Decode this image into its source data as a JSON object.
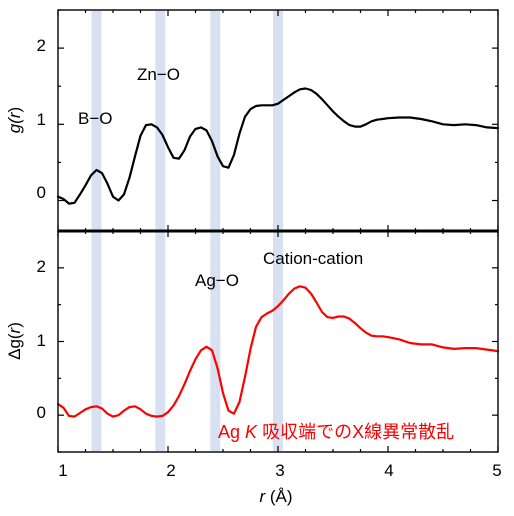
{
  "chart_data": [
    {
      "type": "line",
      "panel": "top",
      "ylabel_prefix": "g(",
      "ylabel_var": "r",
      "ylabel_suffix": ")",
      "ylim": [
        -0.4,
        2.5
      ],
      "xlim": [
        1,
        5
      ],
      "yticks": [
        "0",
        "1",
        "2"
      ],
      "annotations": [
        "B−O",
        "Zn−O"
      ],
      "series": [
        {
          "color": "#000000",
          "x": [
            1.0,
            1.05,
            1.1,
            1.15,
            1.2,
            1.25,
            1.3,
            1.35,
            1.4,
            1.45,
            1.5,
            1.55,
            1.6,
            1.65,
            1.7,
            1.75,
            1.8,
            1.85,
            1.9,
            1.95,
            2.0,
            2.05,
            2.1,
            2.15,
            2.2,
            2.25,
            2.3,
            2.35,
            2.4,
            2.45,
            2.5,
            2.55,
            2.6,
            2.65,
            2.7,
            2.75,
            2.8,
            2.85,
            2.9,
            2.95,
            3.0,
            3.05,
            3.1,
            3.15,
            3.2,
            3.25,
            3.3,
            3.35,
            3.4,
            3.45,
            3.5,
            3.55,
            3.6,
            3.65,
            3.7,
            3.75,
            3.8,
            3.85,
            3.9,
            3.95,
            4.0,
            4.1,
            4.2,
            4.3,
            4.4,
            4.5,
            4.6,
            4.7,
            4.8,
            4.9,
            5.0
          ],
          "y": [
            0.05,
            0.02,
            -0.04,
            -0.03,
            0.08,
            0.2,
            0.33,
            0.4,
            0.36,
            0.22,
            0.05,
            0.0,
            0.08,
            0.3,
            0.58,
            0.85,
            0.99,
            1.0,
            0.96,
            0.86,
            0.7,
            0.56,
            0.55,
            0.66,
            0.84,
            0.94,
            0.96,
            0.92,
            0.78,
            0.58,
            0.45,
            0.43,
            0.6,
            0.88,
            1.1,
            1.2,
            1.24,
            1.25,
            1.25,
            1.25,
            1.27,
            1.32,
            1.37,
            1.42,
            1.46,
            1.47,
            1.45,
            1.4,
            1.33,
            1.25,
            1.17,
            1.1,
            1.04,
            0.99,
            0.97,
            0.97,
            1.0,
            1.04,
            1.06,
            1.07,
            1.08,
            1.09,
            1.09,
            1.07,
            1.04,
            1.0,
            0.99,
            1.0,
            0.99,
            0.96,
            0.95
          ]
        }
      ],
      "reference_lines": [
        1.35,
        1.93,
        2.43,
        3.0
      ]
    },
    {
      "type": "line",
      "panel": "bottom",
      "ylabel_prefix": "Δg(",
      "ylabel_var": "r",
      "ylabel_suffix": ")",
      "ylim": [
        -0.5,
        2.5
      ],
      "xlim": [
        1,
        5
      ],
      "xticks": [
        "1",
        "2",
        "3",
        "4",
        "5"
      ],
      "yticks": [
        "0",
        "1",
        "2"
      ],
      "xlabel_var": "r",
      "xlabel_suffix": " (Å)",
      "annotations": [
        "Ag−O",
        "Cation-cation"
      ],
      "legend_element": "Ag",
      "legend_edge": "K",
      "legend_rest": "吸収端でのX線異常散乱",
      "series": [
        {
          "color": "#ff0000",
          "x": [
            1.0,
            1.05,
            1.1,
            1.15,
            1.2,
            1.25,
            1.3,
            1.35,
            1.4,
            1.45,
            1.5,
            1.55,
            1.6,
            1.65,
            1.7,
            1.75,
            1.8,
            1.85,
            1.9,
            1.95,
            2.0,
            2.05,
            2.1,
            2.15,
            2.2,
            2.25,
            2.3,
            2.35,
            2.4,
            2.45,
            2.5,
            2.55,
            2.6,
            2.65,
            2.7,
            2.75,
            2.8,
            2.85,
            2.9,
            2.95,
            3.0,
            3.05,
            3.1,
            3.15,
            3.2,
            3.25,
            3.3,
            3.35,
            3.4,
            3.45,
            3.5,
            3.55,
            3.6,
            3.65,
            3.7,
            3.75,
            3.8,
            3.85,
            3.9,
            3.95,
            4.0,
            4.1,
            4.2,
            4.3,
            4.4,
            4.5,
            4.6,
            4.7,
            4.8,
            4.9,
            5.0
          ],
          "y": [
            0.15,
            0.1,
            -0.01,
            -0.02,
            0.03,
            0.08,
            0.11,
            0.12,
            0.09,
            0.02,
            -0.02,
            0.0,
            0.06,
            0.11,
            0.12,
            0.08,
            0.02,
            -0.01,
            -0.02,
            -0.01,
            0.04,
            0.13,
            0.26,
            0.42,
            0.6,
            0.76,
            0.88,
            0.93,
            0.88,
            0.64,
            0.3,
            0.06,
            0.02,
            0.18,
            0.52,
            0.9,
            1.2,
            1.33,
            1.38,
            1.42,
            1.48,
            1.56,
            1.65,
            1.72,
            1.75,
            1.73,
            1.65,
            1.53,
            1.4,
            1.33,
            1.32,
            1.34,
            1.34,
            1.31,
            1.25,
            1.18,
            1.12,
            1.08,
            1.07,
            1.07,
            1.06,
            1.03,
            0.98,
            0.96,
            0.96,
            0.92,
            0.9,
            0.91,
            0.91,
            0.89,
            0.87
          ]
        }
      ],
      "reference_lines": [
        1.35,
        1.93,
        2.43,
        3.0
      ]
    }
  ]
}
